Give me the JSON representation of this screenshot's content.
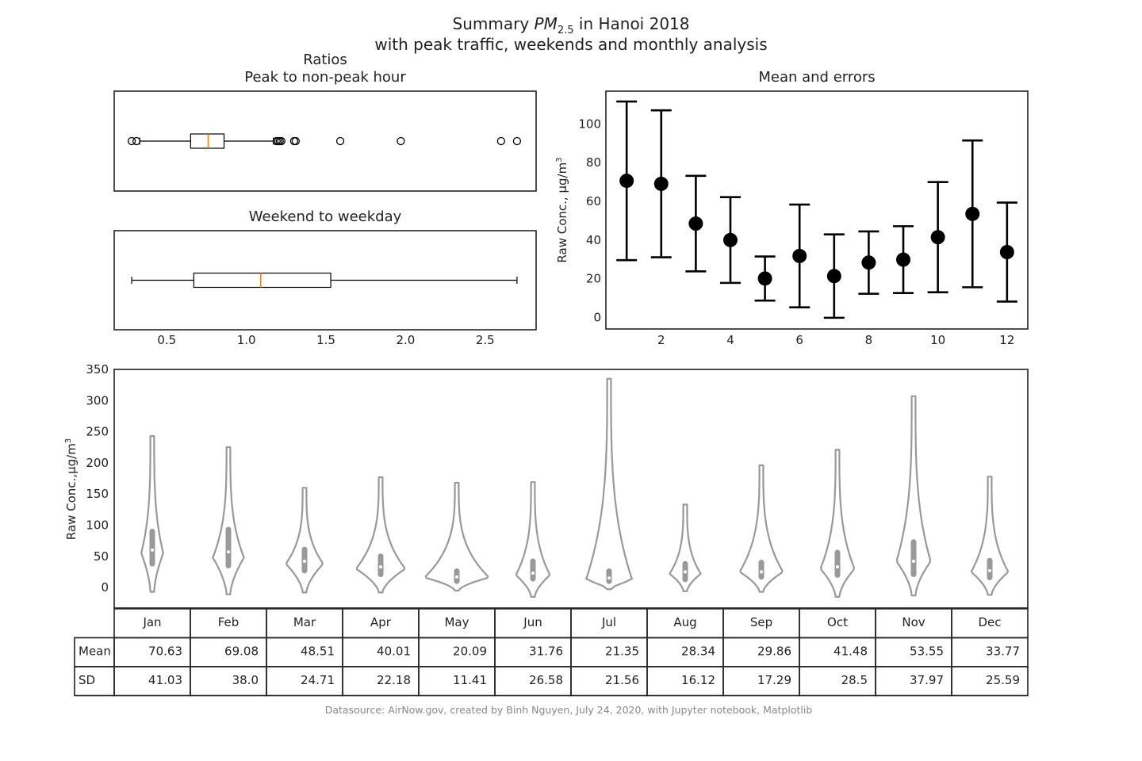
{
  "header": {
    "title_prefix": "Summary ",
    "title_pm": "PM",
    "title_sub": "2.5",
    "title_suffix": " in Hanoi 2018",
    "subtitle": "with peak traffic, weekends and monthly analysis"
  },
  "footer": {
    "source": "Datasource: AirNow.gov, created by Binh Nguyen, July 24, 2020, with Jupyter notebook, Matplotlib"
  },
  "colors": {
    "violin": "#999999",
    "median": "#ff7f0e",
    "axis": "#222222"
  },
  "chart_data": [
    {
      "id": "peak-ratio",
      "type": "boxplot",
      "suptitle": "Ratios",
      "title": "Peak to non-peak hour",
      "orientation": "horizontal",
      "box": {
        "whisker_low": 0.33,
        "q1": 0.65,
        "median": 0.76,
        "q3": 0.86,
        "whisker_high": 1.17
      },
      "outliers": [
        0.28,
        0.31,
        1.19,
        1.2,
        1.21,
        1.22,
        1.3,
        1.31,
        1.59,
        1.97,
        2.6,
        2.7
      ]
    },
    {
      "id": "weekend-ratio",
      "type": "boxplot",
      "title": "Weekend to weekday",
      "orientation": "horizontal",
      "box": {
        "whisker_low": 0.28,
        "q1": 0.67,
        "median": 1.09,
        "q3": 1.53,
        "whisker_high": 2.7
      },
      "outliers": [],
      "xlim": [
        0.17,
        2.82
      ],
      "xticks": [
        "0.5",
        "1.0",
        "1.5",
        "2.0",
        "2.5"
      ]
    },
    {
      "id": "mean-errors",
      "type": "errorbar",
      "title": "Mean and errors",
      "ylabel": "Raw Conc., μg/m",
      "ylabel_sup": "3",
      "x": [
        1,
        2,
        3,
        4,
        5,
        6,
        7,
        8,
        9,
        10,
        11,
        12
      ],
      "mean": [
        70.63,
        69.08,
        48.51,
        40.01,
        20.09,
        31.76,
        21.35,
        28.34,
        29.86,
        41.48,
        53.55,
        33.77
      ],
      "sd": [
        41.03,
        38.0,
        24.71,
        22.18,
        11.41,
        26.58,
        21.56,
        16.12,
        17.29,
        28.5,
        37.97,
        25.59
      ],
      "xlim": [
        0.4,
        12.6
      ],
      "ylim": [
        -6,
        117
      ],
      "xticks": [
        "2",
        "4",
        "6",
        "8",
        "10",
        "12"
      ],
      "yticks": [
        "0",
        "20",
        "40",
        "60",
        "80",
        "100"
      ]
    },
    {
      "id": "monthly-violin",
      "type": "violin",
      "ylabel": "Raw Conc.,μg/m",
      "ylabel_sup": "3",
      "ylim": [
        -33,
        350
      ],
      "yticks": [
        "0",
        "50",
        "100",
        "150",
        "200",
        "250",
        "300",
        "350"
      ],
      "categories": [
        "Jan",
        "Feb",
        "Mar",
        "Apr",
        "May",
        "Jun",
        "Jul",
        "Aug",
        "Sep",
        "Oct",
        "Nov",
        "Dec"
      ],
      "min": [
        -7,
        -11,
        -8,
        -8,
        -5,
        -15,
        -3,
        -6,
        -7,
        -15,
        -13,
        -12
      ],
      "max": [
        243,
        225,
        160,
        177,
        168,
        169,
        335,
        133,
        196,
        221,
        307,
        178
      ],
      "mode": [
        55,
        48,
        38,
        30,
        16,
        20,
        12,
        22,
        25,
        30,
        42,
        25
      ],
      "q1": [
        38,
        35,
        27,
        21,
        10,
        14,
        10,
        13,
        17,
        20,
        21,
        16
      ],
      "median": [
        60,
        57,
        42,
        33,
        17,
        23,
        15,
        25,
        25,
        33,
        42,
        27
      ],
      "q3": [
        90,
        93,
        61,
        50,
        26,
        42,
        26,
        38,
        40,
        56,
        73,
        43
      ],
      "half_width": [
        0.12,
        0.18,
        0.22,
        0.3,
        0.4,
        0.2,
        0.28,
        0.18,
        0.26,
        0.2,
        0.2,
        0.22
      ]
    }
  ],
  "table": {
    "columns": [
      "Jan",
      "Feb",
      "Mar",
      "Apr",
      "May",
      "Jun",
      "Jul",
      "Aug",
      "Sep",
      "Oct",
      "Nov",
      "Dec"
    ],
    "rows": [
      {
        "label": "Mean",
        "values": [
          "70.63",
          "69.08",
          "48.51",
          "40.01",
          "20.09",
          "31.76",
          "21.35",
          "28.34",
          "29.86",
          "41.48",
          "53.55",
          "33.77"
        ]
      },
      {
        "label": "SD",
        "values": [
          "41.03",
          "38.0",
          "24.71",
          "22.18",
          "11.41",
          "26.58",
          "21.56",
          "16.12",
          "17.29",
          "28.5",
          "37.97",
          "25.59"
        ]
      }
    ]
  }
}
